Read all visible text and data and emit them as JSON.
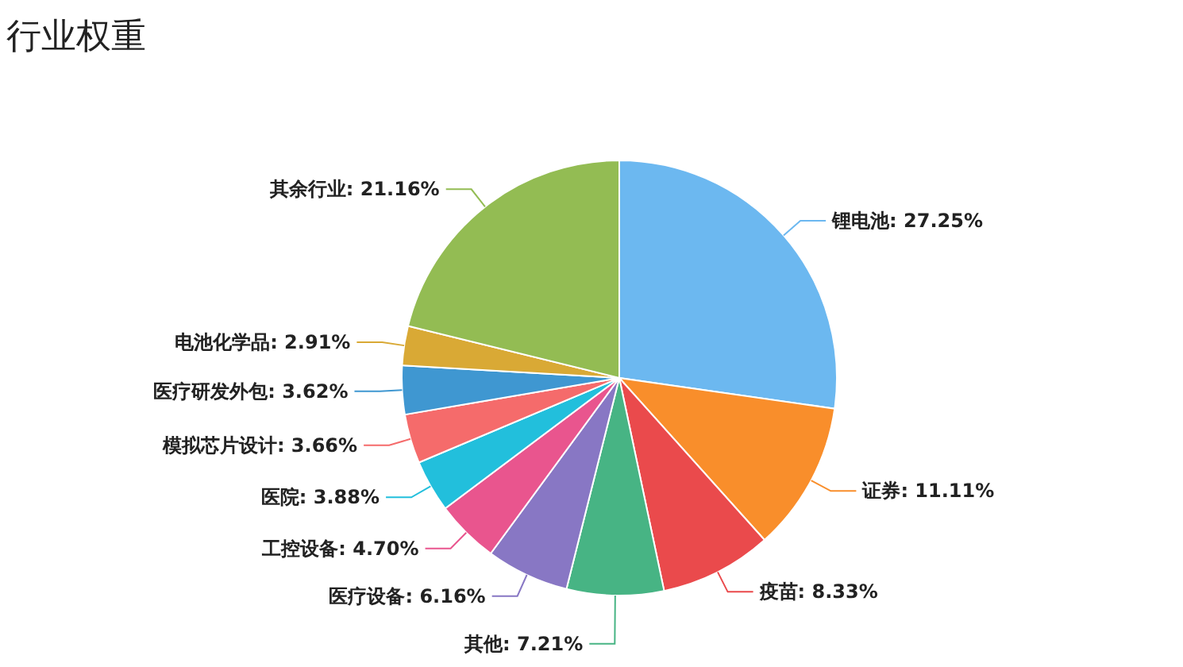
{
  "chart_data": {
    "type": "pie",
    "title": "行业权重",
    "categories": [
      "锂电池",
      "证券",
      "疫苗",
      "其他",
      "医疗设备",
      "工控设备",
      "医院",
      "模拟芯片设计",
      "医疗研发外包",
      "电池化学品",
      "其余行业"
    ],
    "values": [
      27.25,
      11.11,
      8.33,
      7.21,
      6.16,
      4.7,
      3.88,
      3.66,
      3.62,
      2.91,
      21.16
    ],
    "value_labels": [
      "27.25%",
      "11.11%",
      "8.33%",
      "7.21%",
      "6.16%",
      "4.70%",
      "3.88%",
      "3.66%",
      "3.62%",
      "2.91%",
      "21.16%"
    ],
    "colors": [
      "#6cb8f0",
      "#f98e2b",
      "#ea4a4c",
      "#47b484",
      "#8877c4",
      "#e9558e",
      "#22bfdc",
      "#f56b6b",
      "#3f97d1",
      "#d9a935",
      "#93bc53"
    ]
  }
}
